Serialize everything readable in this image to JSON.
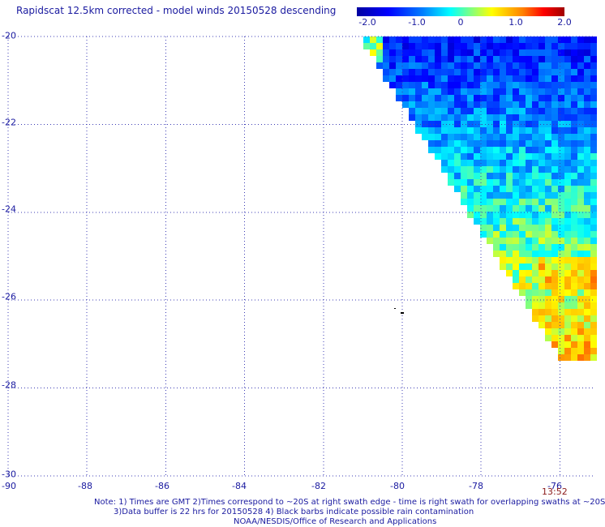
{
  "title": "Rapidscat 12.5km corrected - model winds 20150528 descending",
  "colorbar": {
    "ticks": [
      "-2.0",
      "-1.0",
      "0",
      "1.0",
      "2.0"
    ],
    "min": -2.0,
    "max": 2.0
  },
  "axes": {
    "lat_labels": [
      "-20",
      "-22",
      "-24",
      "-26",
      "-28",
      "-30"
    ],
    "lat_values": [
      -20,
      -22,
      -24,
      -26,
      -28,
      -30
    ],
    "lon_labels": [
      "-90",
      "-88",
      "-86",
      "-84",
      "-82",
      "-80",
      "-78",
      "-76"
    ],
    "lon_values": [
      -90,
      -88,
      -86,
      -84,
      -82,
      -80,
      -78,
      -76
    ],
    "lat_range": [
      -30,
      -20
    ],
    "lon_range": [
      -90,
      -75
    ],
    "grid": true
  },
  "time_label": "13:52",
  "notes": {
    "line1": "Note: 1) Times are GMT 2)Times correspond to ~20S at right swath edge - time is right swath for overlapping swaths at ~20S",
    "line2": "3)Data buffer is 22 hrs for 20150528 4) Black barbs indicate possible rain contamination",
    "line3": "NOAA/NESDIS/Office of Research and Applications"
  },
  "colors": {
    "text": "#1a1aa0",
    "time": "#8b1a1a",
    "grid": "#3c3cb4"
  }
}
